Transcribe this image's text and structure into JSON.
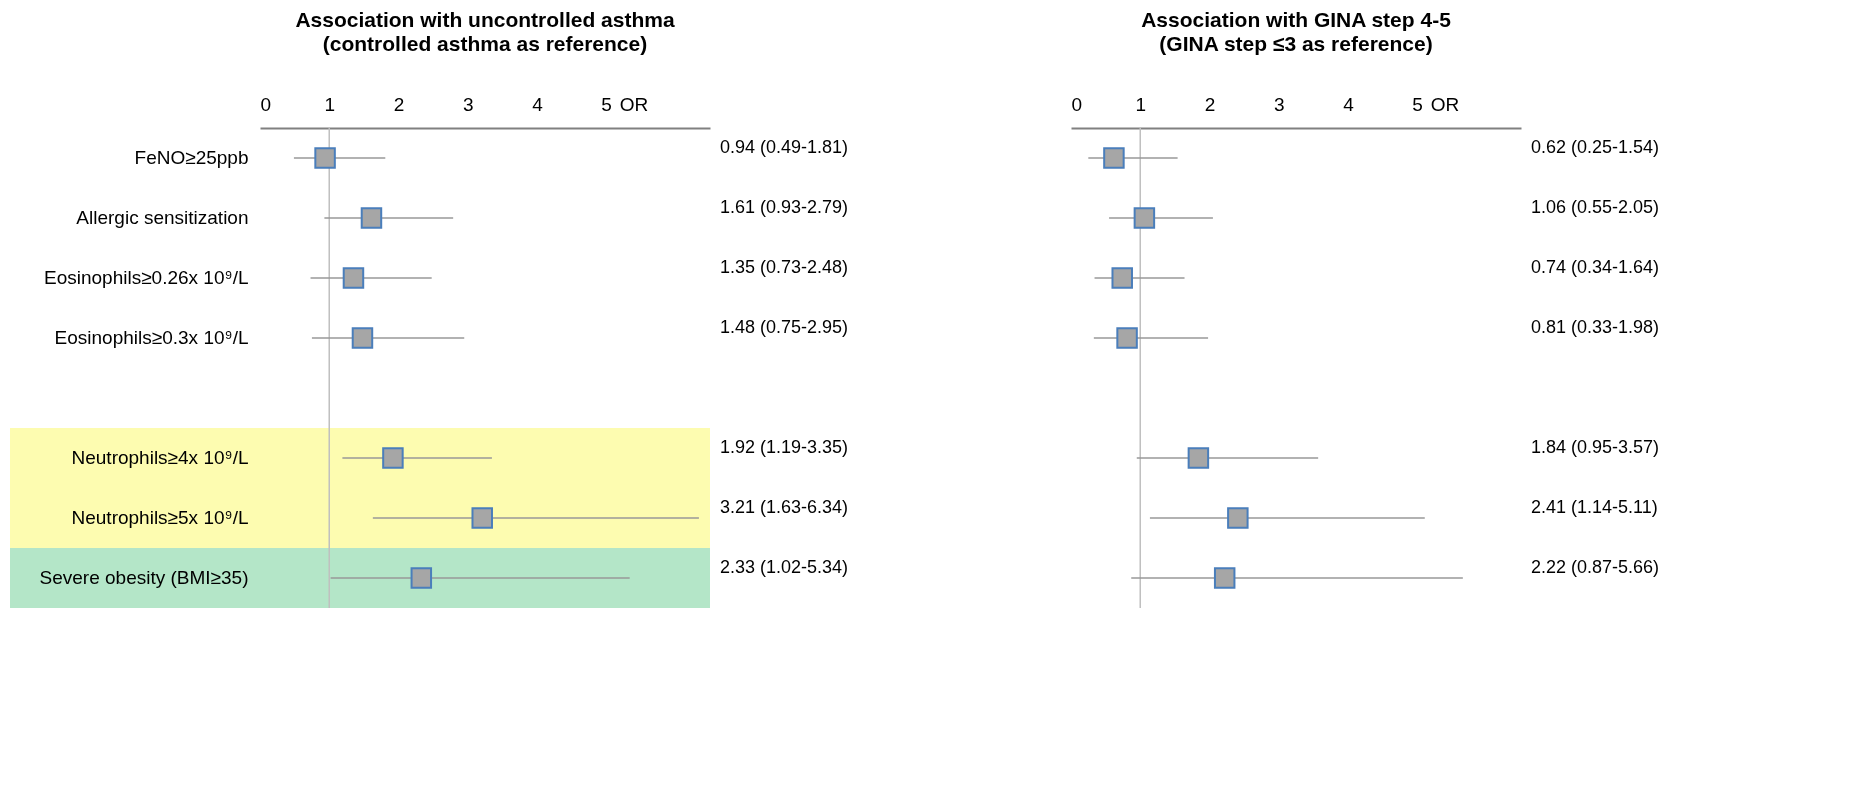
{
  "chart_data": [
    {
      "type": "scatter",
      "title": "Association with uncontrolled asthma",
      "subtitle": "(controlled asthma as reference)",
      "xlabel": "OR",
      "categories": [
        "FeNO≥25ppb",
        "Allergic sensitization",
        "Eosinophils≥0.26x 10⁹/L",
        "Eosinophils≥0.3x 10⁹/L",
        null,
        "Neutrophils≥4x 10⁹/L",
        "Neutrophils≥5x 10⁹/L",
        "Severe obesity (BMI≥35)"
      ],
      "series": [
        {
          "color": "#a6a6a6",
          "values": [
            0.94,
            1.61,
            1.35,
            1.48,
            null,
            1.92,
            3.21,
            2.33
          ],
          "errors": [
            [
              0.49,
              1.81
            ],
            [
              0.93,
              2.79
            ],
            [
              0.73,
              2.48
            ],
            [
              0.75,
              2.95
            ],
            null,
            [
              1.19,
              3.35
            ],
            [
              1.63,
              6.34
            ],
            [
              1.02,
              5.34
            ]
          ],
          "value_labels": [
            "0.94 (0.49-1.81)",
            "1.61 (0.93-2.79)",
            "1.35 (0.73-2.48)",
            "1.48 (0.75-2.95)",
            null,
            "1.92 (1.19-3.35)",
            "3.21 (1.63-6.34)",
            "2.33 (1.02-5.34)"
          ]
        }
      ],
      "xlim": [
        0,
        6.5
      ],
      "xticks": [
        0,
        1,
        2,
        3,
        4,
        5
      ],
      "grid": false,
      "legend": false,
      "marker": "square",
      "orientation": "horizontal",
      "ref_lines": [
        {
          "axis": "x",
          "value": 1,
          "color": "#bfbfbf"
        }
      ],
      "bands": [
        {
          "axis": "y",
          "from": "Neutrophils≥4x 10⁹/L",
          "to": "Neutrophils≥5x 10⁹/L",
          "color": "#fdfcb0"
        },
        {
          "axis": "y",
          "from": "Severe obesity (BMI≥35)",
          "to": "Severe obesity (BMI≥35)",
          "color": "#b4e6c8"
        }
      ]
    },
    {
      "type": "scatter",
      "title": "Association with GINA step 4-5",
      "subtitle": "(GINA step ≤3 as reference)",
      "xlabel": "OR",
      "categories": [
        null,
        null,
        null,
        null,
        null,
        null,
        null,
        null
      ],
      "orientation": "horizontal",
      "series": [
        {
          "color": "#a6a6a6",
          "values": [
            0.62,
            1.06,
            0.74,
            0.81,
            null,
            1.84,
            2.41,
            2.22
          ],
          "errors": [
            [
              0.25,
              1.54
            ],
            [
              0.55,
              2.05
            ],
            [
              0.34,
              1.64
            ],
            [
              0.33,
              1.98
            ],
            null,
            [
              0.95,
              3.57
            ],
            [
              1.14,
              5.11
            ],
            [
              0.87,
              5.66
            ]
          ],
          "value_labels": [
            "0.62 (0.25-1.54)",
            "1.06 (0.55-2.05)",
            "0.74 (0.34-1.64)",
            "0.81 (0.33-1.98)",
            null,
            "1.84 (0.95-3.57)",
            "2.41 (1.14-5.11)",
            "2.22 (0.87-5.66)"
          ]
        }
      ],
      "xlim": [
        0,
        6.5
      ],
      "xticks": [
        0,
        1,
        2,
        3,
        4,
        5
      ],
      "grid": false,
      "legend": false,
      "marker": "square",
      "ref_lines": [
        {
          "axis": "x",
          "value": 1,
          "color": "#bfbfbf"
        }
      ]
    }
  ]
}
